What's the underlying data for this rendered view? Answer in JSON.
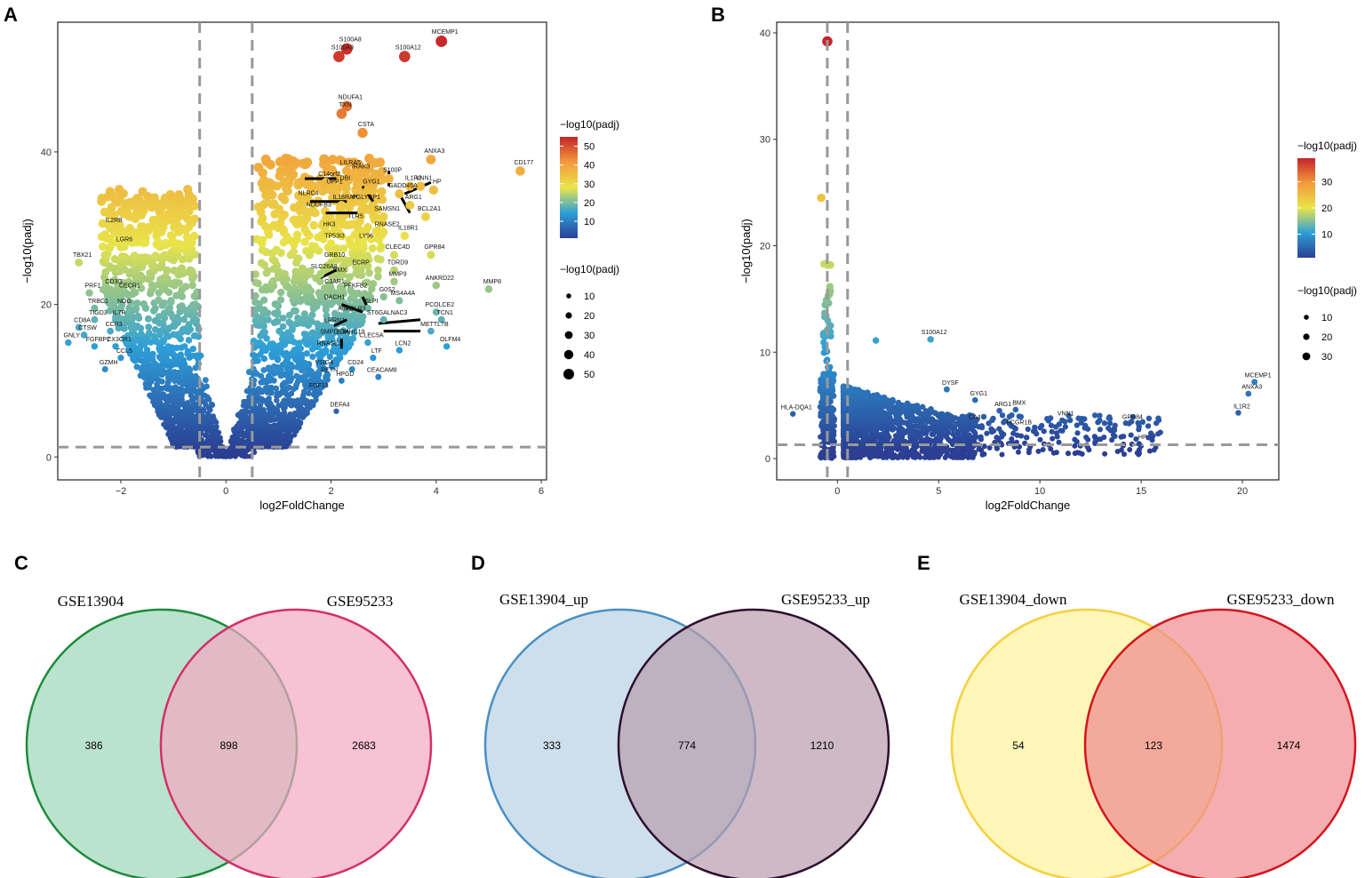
{
  "panel_labels": {
    "a": "A",
    "b": "B",
    "c": "C",
    "d": "D",
    "e": "E"
  },
  "legend": {
    "color_title": "−log10(padj)",
    "size_title": "−log10(padj)"
  },
  "chart_data": [
    {
      "id": "A",
      "type": "scatter",
      "title": "",
      "xlabel": "log2FoldChange",
      "ylabel": "−log10(padj)",
      "xlim": [
        -3.2,
        6.1
      ],
      "ylim": [
        -3,
        57
      ],
      "xticks": [
        -2,
        0,
        2,
        4,
        6
      ],
      "xtick_labels": [
        "−2",
        "0",
        "2",
        "4",
        "6"
      ],
      "yticks": [
        0,
        20,
        40
      ],
      "ytick_labels": [
        "0",
        "20",
        "40"
      ],
      "vlines": [
        -0.5,
        0.5
      ],
      "hline": 1.3,
      "color_scale": {
        "min": 1,
        "max": 55,
        "ticks": [
          10,
          20,
          30,
          40,
          50
        ]
      },
      "size_legend": [
        10,
        20,
        30,
        40,
        50
      ],
      "labeled_points": [
        {
          "label": "MCEMP1",
          "x": 4.1,
          "y": 54.5
        },
        {
          "label": "S100A8",
          "x": 2.3,
          "y": 53.5
        },
        {
          "label": "S100A9",
          "x": 2.15,
          "y": 52.5
        },
        {
          "label": "S100A12",
          "x": 3.4,
          "y": 52.5
        },
        {
          "label": "NDUFA1",
          "x": 2.3,
          "y": 46
        },
        {
          "label": "TXN",
          "x": 2.2,
          "y": 45
        },
        {
          "label": "CSTA",
          "x": 2.6,
          "y": 42.5
        },
        {
          "label": "ANXA3",
          "x": 3.9,
          "y": 39
        },
        {
          "label": "CD177",
          "x": 5.6,
          "y": 37.5
        },
        {
          "label": "LILRA5",
          "x": 2.3,
          "y": 37.5
        },
        {
          "label": "IRAK3",
          "x": 2.5,
          "y": 37
        },
        {
          "label": "S100P",
          "x": 3.1,
          "y": 36.5
        },
        {
          "label": "C14orf2",
          "x": 1.9,
          "y": 36
        },
        {
          "label": "DBI",
          "x": 2.2,
          "y": 35.5
        },
        {
          "label": "GYG1",
          "x": 2.7,
          "y": 35
        },
        {
          "label": "IL1R2",
          "x": 3.5,
          "y": 35.5
        },
        {
          "label": "VNN1",
          "x": 3.7,
          "y": 35.5
        },
        {
          "label": "UPP1",
          "x": 2.0,
          "y": 35
        },
        {
          "label": "GADD45A",
          "x": 3.3,
          "y": 34.5
        },
        {
          "label": "HP",
          "x": 3.95,
          "y": 35
        },
        {
          "label": "NLRC4",
          "x": 1.5,
          "y": 33.5
        },
        {
          "label": "IL18RAP",
          "x": 2.2,
          "y": 33
        },
        {
          "label": "PGLYRP1",
          "x": 2.6,
          "y": 33
        },
        {
          "label": "ARG1",
          "x": 3.5,
          "y": 33
        },
        {
          "label": "NDUFB3",
          "x": 1.7,
          "y": 32
        },
        {
          "label": "SAMSN1",
          "x": 3.0,
          "y": 31.5
        },
        {
          "label": "BCL2A1",
          "x": 3.8,
          "y": 31.5
        },
        {
          "label": "TLR5",
          "x": 2.4,
          "y": 30.5
        },
        {
          "label": "HK3",
          "x": 1.9,
          "y": 29.5
        },
        {
          "label": "RNASE2",
          "x": 3.0,
          "y": 29.5
        },
        {
          "label": "IL18R1",
          "x": 3.4,
          "y": 29
        },
        {
          "label": "TP53I3",
          "x": 2.0,
          "y": 28
        },
        {
          "label": "LY96",
          "x": 2.6,
          "y": 28
        },
        {
          "label": "GPR84",
          "x": 3.9,
          "y": 26.5
        },
        {
          "label": "CLEC4D",
          "x": 3.2,
          "y": 26.5
        },
        {
          "label": "GRB10",
          "x": 2.0,
          "y": 25.5
        },
        {
          "label": "ECRP",
          "x": 2.5,
          "y": 24.5
        },
        {
          "label": "TDRD9",
          "x": 3.2,
          "y": 24.5
        },
        {
          "label": "SLC26A8",
          "x": 1.8,
          "y": 24
        },
        {
          "label": "BMX",
          "x": 2.1,
          "y": 23.5
        },
        {
          "label": "MMP9",
          "x": 3.2,
          "y": 23
        },
        {
          "label": "ANKRD22",
          "x": 4.0,
          "y": 22.5
        },
        {
          "label": "C3AR1",
          "x": 2.0,
          "y": 22
        },
        {
          "label": "PFKFB2",
          "x": 2.4,
          "y": 21.5
        },
        {
          "label": "G0S2",
          "x": 3.0,
          "y": 21
        },
        {
          "label": "MMP8",
          "x": 5.0,
          "y": 22
        },
        {
          "label": "MS4A4A",
          "x": 3.3,
          "y": 20.5
        },
        {
          "label": "DACH1",
          "x": 2.0,
          "y": 20
        },
        {
          "label": "SLPI",
          "x": 2.7,
          "y": 19.5
        },
        {
          "label": "PCOLCE2",
          "x": 4.0,
          "y": 19
        },
        {
          "label": "AIM2",
          "x": 2.2,
          "y": 18.5
        },
        {
          "label": "FOLR3",
          "x": 2.4,
          "y": 18.5
        },
        {
          "label": "ST6GALNAC3",
          "x": 3.0,
          "y": 18
        },
        {
          "label": "TCN1",
          "x": 4.1,
          "y": 18
        },
        {
          "label": "LRRN1",
          "x": 2.0,
          "y": 17
        },
        {
          "label": "METTL7B",
          "x": 3.9,
          "y": 16.5
        },
        {
          "label": "SMPDL3A",
          "x": 2.0,
          "y": 15.5
        },
        {
          "label": "ZDHHC19",
          "x": 2.3,
          "y": 15.5
        },
        {
          "label": "CLEC5A",
          "x": 2.7,
          "y": 15
        },
        {
          "label": "RNASE3",
          "x": 1.9,
          "y": 14
        },
        {
          "label": "LCN2",
          "x": 3.3,
          "y": 14
        },
        {
          "label": "OLFM4",
          "x": 4.2,
          "y": 14.5
        },
        {
          "label": "LTF",
          "x": 2.8,
          "y": 13
        },
        {
          "label": "VSIG4",
          "x": 1.8,
          "y": 11.5
        },
        {
          "label": "CD24",
          "x": 2.4,
          "y": 11.5
        },
        {
          "label": "RETN",
          "x": 1.9,
          "y": 10.5
        },
        {
          "label": "HPGD",
          "x": 2.2,
          "y": 10
        },
        {
          "label": "CEACAM8",
          "x": 2.9,
          "y": 10.5
        },
        {
          "label": "FGF13",
          "x": 1.7,
          "y": 8.5
        },
        {
          "label": "DEFA4",
          "x": 2.1,
          "y": 6
        },
        {
          "label": "IL2RB",
          "x": -2.2,
          "y": 30
        },
        {
          "label": "TBX21",
          "x": -2.8,
          "y": 25.5
        },
        {
          "label": "LGR6",
          "x": -2.0,
          "y": 27.5
        },
        {
          "label": "PRF1",
          "x": -2.6,
          "y": 21.5
        },
        {
          "label": "CD3G",
          "x": -2.2,
          "y": 22
        },
        {
          "label": "CECR1",
          "x": -1.9,
          "y": 21.5
        },
        {
          "label": "TRBC1",
          "x": -2.5,
          "y": 19.5
        },
        {
          "label": "NOG",
          "x": -2.0,
          "y": 19.5
        },
        {
          "label": "TIGD3",
          "x": -2.5,
          "y": 18
        },
        {
          "label": "IL7R",
          "x": -2.1,
          "y": 18
        },
        {
          "label": "CD8A",
          "x": -2.8,
          "y": 17
        },
        {
          "label": "CTSW",
          "x": -2.7,
          "y": 16
        },
        {
          "label": "CCR3",
          "x": -2.2,
          "y": 16.5
        },
        {
          "label": "GNLY",
          "x": -3.0,
          "y": 15
        },
        {
          "label": "FGFBP2",
          "x": -2.5,
          "y": 14.5
        },
        {
          "label": "CX3CR1",
          "x": -2.1,
          "y": 14.5
        },
        {
          "label": "CCL5",
          "x": -2.0,
          "y": 13
        },
        {
          "label": "GZMH",
          "x": -2.3,
          "y": 11.5
        }
      ],
      "label_lines": [
        [
          "C14orf2",
          1.5,
          36.5,
          2.1,
          36.5
        ],
        [
          "GYG1",
          2.6,
          35.5,
          2.8,
          33.5
        ],
        [
          "S100P",
          3.1,
          37.5,
          3.1,
          35.5
        ],
        [
          "VNN1",
          3.4,
          34.5,
          3.9,
          36
        ],
        [
          "GADD45A",
          3.3,
          34.5,
          3.5,
          32
        ],
        [
          "NLRC4",
          1.6,
          33.5,
          2.3,
          33.5
        ],
        [
          "NDUFB3",
          1.9,
          32,
          2.5,
          32
        ],
        [
          "SLC26A8",
          1.8,
          23.5,
          2.1,
          24.5
        ],
        [
          "PFKFB2",
          2.6,
          21,
          2.7,
          19.5
        ],
        [
          "DACH1",
          2.2,
          20,
          2.6,
          19
        ],
        [
          "ST6GALNAC3",
          2.9,
          17.5,
          3.7,
          18
        ],
        [
          "METTL7B",
          3.0,
          16.5,
          3.7,
          16.5
        ],
        [
          "LRRN1",
          2.0,
          17,
          2.3,
          18
        ],
        [
          "ZDHHC19",
          2.2,
          15.5,
          2.2,
          14.2
        ]
      ]
    },
    {
      "id": "B",
      "type": "scatter",
      "title": "",
      "xlabel": "log2FoldChange",
      "ylabel": "−log10(padj)",
      "xlim": [
        -3,
        21.8
      ],
      "ylim": [
        -2,
        41
      ],
      "xticks": [
        0,
        5,
        10,
        15,
        20
      ],
      "xtick_labels": [
        "0",
        "5",
        "10",
        "15",
        "20"
      ],
      "yticks": [
        0,
        10,
        20,
        30,
        40
      ],
      "ytick_labels": [
        "0",
        "10",
        "20",
        "30",
        "40"
      ],
      "vlines": [
        -0.5,
        0.5
      ],
      "hline": 1.3,
      "color_scale": {
        "min": 1,
        "max": 39,
        "ticks": [
          10,
          20,
          30
        ]
      },
      "size_legend": [
        10,
        20,
        30
      ],
      "labeled_points": [
        {
          "label": "S100A12",
          "x": 4.6,
          "y": 11.2
        },
        {
          "label": "MCEMP1",
          "x": 20.6,
          "y": 7.2
        },
        {
          "label": "ANXA3",
          "x": 20.3,
          "y": 6.1
        },
        {
          "label": "IL1R2",
          "x": 19.8,
          "y": 4.3
        },
        {
          "label": "DYSF",
          "x": 5.4,
          "y": 6.5
        },
        {
          "label": "GYG1",
          "x": 6.8,
          "y": 5.5
        },
        {
          "label": "BMX",
          "x": 8.8,
          "y": 4.6
        },
        {
          "label": "ARG1",
          "x": 8.0,
          "y": 4.5
        },
        {
          "label": "CA4",
          "x": 6.6,
          "y": 3.3
        },
        {
          "label": "FCGR1B",
          "x": 8.8,
          "y": 2.8
        },
        {
          "label": "VNN1",
          "x": 11.1,
          "y": 3.6
        },
        {
          "label": "GPR84",
          "x": 14.4,
          "y": 3.3
        },
        {
          "label": "HP",
          "x": 14.9,
          "y": 1.4
        },
        {
          "label": "HLA-DQA1",
          "x": -2.2,
          "y": 4.2
        }
      ]
    },
    {
      "id": "C",
      "type": "venn",
      "sets": [
        "GSE13904",
        "GSE95233"
      ],
      "counts": {
        "left_only": 386,
        "intersection": 898,
        "right_only": 2683
      },
      "colors": {
        "left_fill": "#a3d9bd",
        "left_stroke": "#1e8a3c",
        "right_fill": "#f2a8c2",
        "right_stroke": "#d2306a"
      }
    },
    {
      "id": "D",
      "type": "venn",
      "sets": [
        "GSE13904_up",
        "GSE95233_up"
      ],
      "counts": {
        "left_only": 333,
        "intersection": 774,
        "right_only": 1210
      },
      "colors": {
        "left_fill": "#bcd4e6",
        "left_stroke": "#4a8fc4",
        "right_fill": "#b89cae",
        "right_stroke": "#2e0f2e"
      }
    },
    {
      "id": "E",
      "type": "venn",
      "sets": [
        "GSE13904_down",
        "GSE95233_down"
      ],
      "counts": {
        "left_only": 54,
        "intersection": 123,
        "right_only": 1474
      },
      "colors": {
        "left_fill": "#fff3a0",
        "left_stroke": "#f5d040",
        "right_fill": "#f08a8e",
        "right_stroke": "#d4141e"
      }
    }
  ]
}
